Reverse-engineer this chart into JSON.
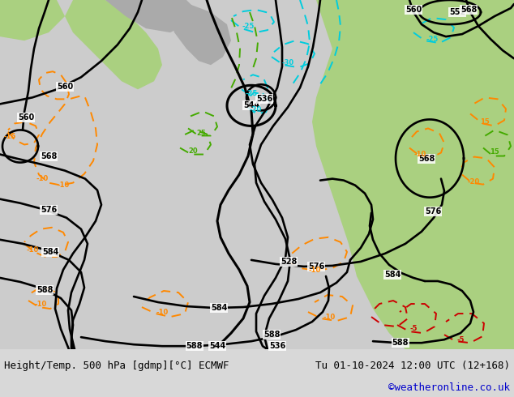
{
  "title_left": "Height/Temp. 500 hPa [gdmp][°C] ECMWF",
  "title_right": "Tu 01-10-2024 12:00 UTC (12+168)",
  "credit": "©weatheronline.co.uk",
  "figsize": [
    6.34,
    4.9
  ],
  "dpi": 100,
  "black": "#000000",
  "orange": "#ff8800",
  "cyan": "#00ccdd",
  "green_c": "#44aa00",
  "red_c": "#cc0000",
  "sea_color": "#cccccc",
  "land_green": "#aad080",
  "land_gray": "#aaaaaa",
  "bottom_bg": "#d8d8d8"
}
